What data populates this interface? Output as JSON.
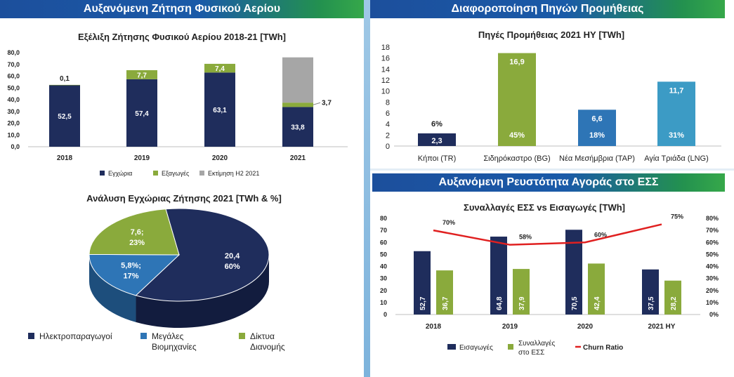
{
  "banners": {
    "gas_demand": "Αυξανόμενη Ζήτηση Φυσικού Αερίου",
    "supply_diversification": "Διαφοροποίηση Πηγών Προμήθειας",
    "market_liquidity": "Αυξανόμενη Ρευστότητα Αγοράς στο ΕΣΣ"
  },
  "colors": {
    "navy": "#1f2d5c",
    "green": "#8aaa3c",
    "gray": "#a6a6a6",
    "blue": "#2e75b6",
    "teal": "#3c9bc5",
    "red": "#e02020"
  },
  "chart_data": [
    {
      "id": "demand",
      "type": "bar",
      "stacked": true,
      "title": "Εξέλιξη Ζήτησης Φυσικού Αερίου 2018-21 [TWh]",
      "categories": [
        "2018",
        "2019",
        "2020",
        "2021"
      ],
      "series": [
        {
          "name": "Εγχώρια",
          "values": [
            52.5,
            57.4,
            63.1,
            33.8
          ],
          "labels": [
            "52,5",
            "57,4",
            "63,1",
            "33,8"
          ]
        },
        {
          "name": "Εξαγωγές",
          "values": [
            0.1,
            7.7,
            7.4,
            3.7
          ],
          "labels": [
            "0,1",
            "7,7",
            "7,4",
            "3,7"
          ]
        },
        {
          "name": "Εκτίμηση Η2 2021",
          "values": [
            0,
            0,
            0,
            38.5
          ],
          "labels": [
            "",
            "",
            "",
            ""
          ]
        }
      ],
      "ylim": [
        0,
        80
      ],
      "yticks": [
        "0,0",
        "10,0",
        "20,0",
        "30,0",
        "40,0",
        "50,0",
        "60,0",
        "70,0",
        "80,0"
      ],
      "legend": "bottom"
    },
    {
      "id": "domestic",
      "type": "pie",
      "title": "Ανάλυση Εγχώριας Ζήτησης 2021 [TWh & %]",
      "slices": [
        {
          "name": "Ηλεκτροπαραγωγοί",
          "value": 20.4,
          "label": "20,4",
          "pct": "60%"
        },
        {
          "name": "Μεγάλες Βιομηχανίες",
          "value": 5.8,
          "label": "5,8%;",
          "pct": "17%"
        },
        {
          "name": "Δίκτυα Διανομής",
          "value": 7.6,
          "label": "7,6;",
          "pct": "23%"
        }
      ],
      "legend": [
        "Ηλεκτροπαραγωγοί",
        "Μεγάλες Βιομηχανίες",
        "Δίκτυα Διανομής"
      ],
      "legend_placement": "bottom"
    },
    {
      "id": "supply",
      "type": "bar",
      "title": "Πηγές Προμήθειας 2021 ΗΥ [TWh]",
      "categories": [
        "Κήποι (TR)",
        "Σιδηρόκαστρο (BG)",
        "Νέα Μεσήμβρια (TAP)",
        "Αγία Τριάδα (LNG)"
      ],
      "values": [
        2.3,
        16.9,
        6.6,
        11.7
      ],
      "value_labels": [
        "2,3",
        "16,9",
        "6,6",
        "11,7"
      ],
      "pct_labels": [
        "6%",
        "45%",
        "18%",
        "31%"
      ],
      "ylim": [
        0,
        18
      ],
      "yticks": [
        "0",
        "2",
        "4",
        "6",
        "8",
        "10",
        "12",
        "14",
        "16",
        "18"
      ]
    },
    {
      "id": "trades",
      "type": "bar",
      "title": "Συναλλαγές ΕΣΣ vs Εισαγωγές [TWh]",
      "categories": [
        "2018",
        "2019",
        "2020",
        "2021 ΗΥ"
      ],
      "series": [
        {
          "name": "Εισαγωγές",
          "values": [
            52.7,
            64.8,
            70.5,
            37.5
          ],
          "labels": [
            "52,7",
            "64,8",
            "70,5",
            "37,5"
          ]
        },
        {
          "name": "Συναλλαγές στο ΕΣΣ",
          "values": [
            36.7,
            37.9,
            42.4,
            28.2
          ],
          "labels": [
            "36,7",
            "37,9",
            "42,4",
            "28,2"
          ]
        }
      ],
      "line": {
        "name": "Churn Ratio",
        "values": [
          70,
          58,
          60,
          75
        ],
        "labels": [
          "70%",
          "58%",
          "60%",
          "75%"
        ]
      },
      "ylim": [
        0,
        80
      ],
      "y2lim": [
        0,
        80
      ],
      "yticks": [
        "0",
        "10",
        "20",
        "30",
        "40",
        "50",
        "60",
        "70",
        "80"
      ],
      "y2ticks": [
        "0%",
        "10%",
        "20%",
        "30%",
        "40%",
        "50%",
        "60%",
        "70%",
        "80%"
      ],
      "legend": "bottom"
    }
  ]
}
